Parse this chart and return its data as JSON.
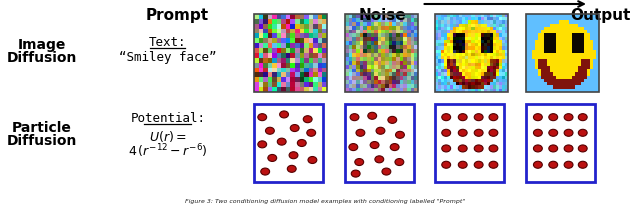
{
  "title_prompt": "Prompt",
  "title_noise": "Noise",
  "title_output": "Output",
  "row1_label1": "Image",
  "row1_label2": "Diffusion",
  "row2_label1": "Particle",
  "row2_label2": "Diffusion",
  "prompt1_line1": "Text:",
  "prompt1_line2": "“Smiley face”",
  "prompt2_line1": "Potential:",
  "prompt2_math": "$U(r) =$",
  "prompt2_math2": "$4\\,(r^{-12} - r^{-6})$",
  "bg_color": "#ffffff",
  "arrow_color": "#000000",
  "box_color": "#2222cc",
  "particle_face": "#bb1111",
  "particle_edge": "#550000",
  "caption": "Figure 3: Two conditioning diffusion model examples with conditioning labelled \"Prompt\""
}
